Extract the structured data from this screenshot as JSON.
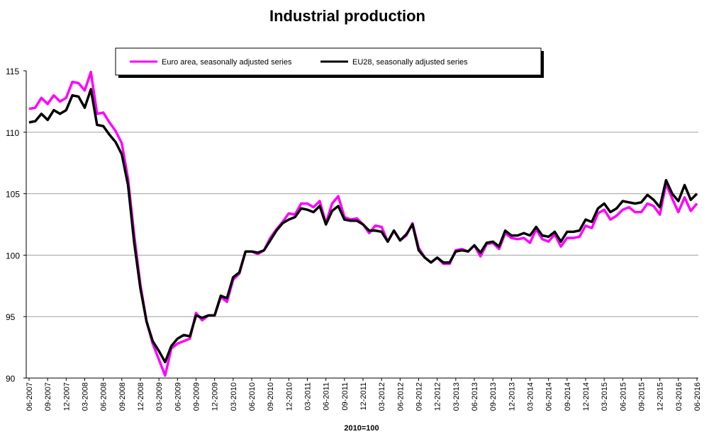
{
  "chart_data": {
    "type": "line",
    "title": "Industrial production",
    "xlabel": "2010=100",
    "ylabel": "",
    "ylim": [
      90,
      115
    ],
    "yticks": [
      "90",
      "95",
      "100",
      "105",
      "110",
      "115"
    ],
    "grid": true,
    "legend_placement": "top-center",
    "xtick_labels": [
      "06-2007",
      "09-2007",
      "12-2007",
      "03-2008",
      "06-2008",
      "09-2008",
      "12-2008",
      "03-2009",
      "06-2009",
      "09-2009",
      "12-2009",
      "03-2010",
      "06-2010",
      "09-2010",
      "12-2010",
      "03-2011",
      "06-2011",
      "09-2011",
      "12-2011",
      "03-2012",
      "06-2012",
      "09-2012",
      "12-2012",
      "03-2013",
      "06-2013",
      "09-2013",
      "12-2013",
      "03-2014",
      "06-2014",
      "09-2014",
      "12-2014",
      "03-2015",
      "06-2015",
      "09-2015",
      "12-2015",
      "03-2016",
      "06-2016"
    ],
    "x_start": "06-2007",
    "x_end": "06-2016",
    "frequency": "monthly",
    "series": [
      {
        "name": "Euro area, seasonally adjusted series",
        "color": "#ff00ff",
        "values": [
          111.9,
          112.0,
          112.8,
          112.3,
          113.0,
          112.5,
          112.8,
          114.1,
          114.0,
          113.4,
          114.9,
          111.5,
          111.6,
          110.8,
          110.1,
          109.1,
          106.2,
          101.6,
          97.6,
          94.6,
          92.8,
          91.5,
          90.2,
          92.4,
          92.8,
          93.0,
          93.2,
          95.3,
          94.7,
          95.1,
          95.1,
          96.6,
          96.2,
          98.0,
          98.5,
          100.3,
          100.3,
          100.1,
          100.4,
          101.4,
          102.1,
          102.7,
          103.4,
          103.3,
          104.2,
          104.2,
          103.9,
          104.4,
          102.6,
          104.2,
          104.8,
          103.1,
          102.9,
          103.0,
          102.5,
          101.8,
          102.4,
          102.3,
          101.1,
          102.0,
          101.2,
          101.6,
          102.6,
          100.6,
          99.8,
          99.4,
          99.8,
          99.3,
          99.3,
          100.4,
          100.5,
          100.3,
          100.8,
          99.9,
          100.9,
          101.0,
          100.5,
          101.8,
          101.4,
          101.3,
          101.4,
          101.0,
          102.1,
          101.3,
          101.1,
          101.7,
          100.7,
          101.4,
          101.4,
          101.5,
          102.4,
          102.2,
          103.4,
          103.7,
          102.9,
          103.2,
          103.7,
          103.9,
          103.5,
          103.5,
          104.2,
          104.0,
          103.3,
          105.8,
          104.6,
          103.5,
          104.7,
          103.6,
          104.2
        ]
      },
      {
        "name": "EU28, seasonally adjusted series",
        "color": "#000000",
        "values": [
          110.8,
          110.9,
          111.5,
          111.0,
          111.8,
          111.5,
          111.8,
          113.0,
          112.9,
          112.0,
          113.5,
          110.6,
          110.5,
          109.8,
          109.2,
          108.2,
          105.7,
          101.0,
          97.3,
          94.6,
          93.0,
          92.2,
          91.3,
          92.6,
          93.2,
          93.5,
          93.4,
          95.1,
          94.9,
          95.1,
          95.1,
          96.7,
          96.5,
          98.2,
          98.6,
          100.3,
          100.3,
          100.2,
          100.4,
          101.2,
          102.0,
          102.6,
          102.9,
          103.1,
          103.8,
          103.7,
          103.5,
          104.0,
          102.5,
          103.6,
          104.0,
          102.9,
          102.8,
          102.8,
          102.5,
          102.0,
          102.0,
          101.9,
          101.1,
          102.0,
          101.2,
          101.7,
          102.5,
          100.4,
          99.8,
          99.4,
          99.8,
          99.4,
          99.4,
          100.3,
          100.4,
          100.3,
          100.8,
          100.2,
          101.0,
          101.1,
          100.7,
          102.0,
          101.6,
          101.6,
          101.8,
          101.6,
          102.3,
          101.6,
          101.5,
          101.9,
          101.1,
          101.9,
          101.9,
          102.0,
          102.9,
          102.7,
          103.8,
          104.2,
          103.5,
          103.8,
          104.4,
          104.3,
          104.2,
          104.3,
          104.9,
          104.5,
          103.9,
          106.1,
          105.0,
          104.4,
          105.7,
          104.5,
          105.0
        ]
      }
    ]
  }
}
